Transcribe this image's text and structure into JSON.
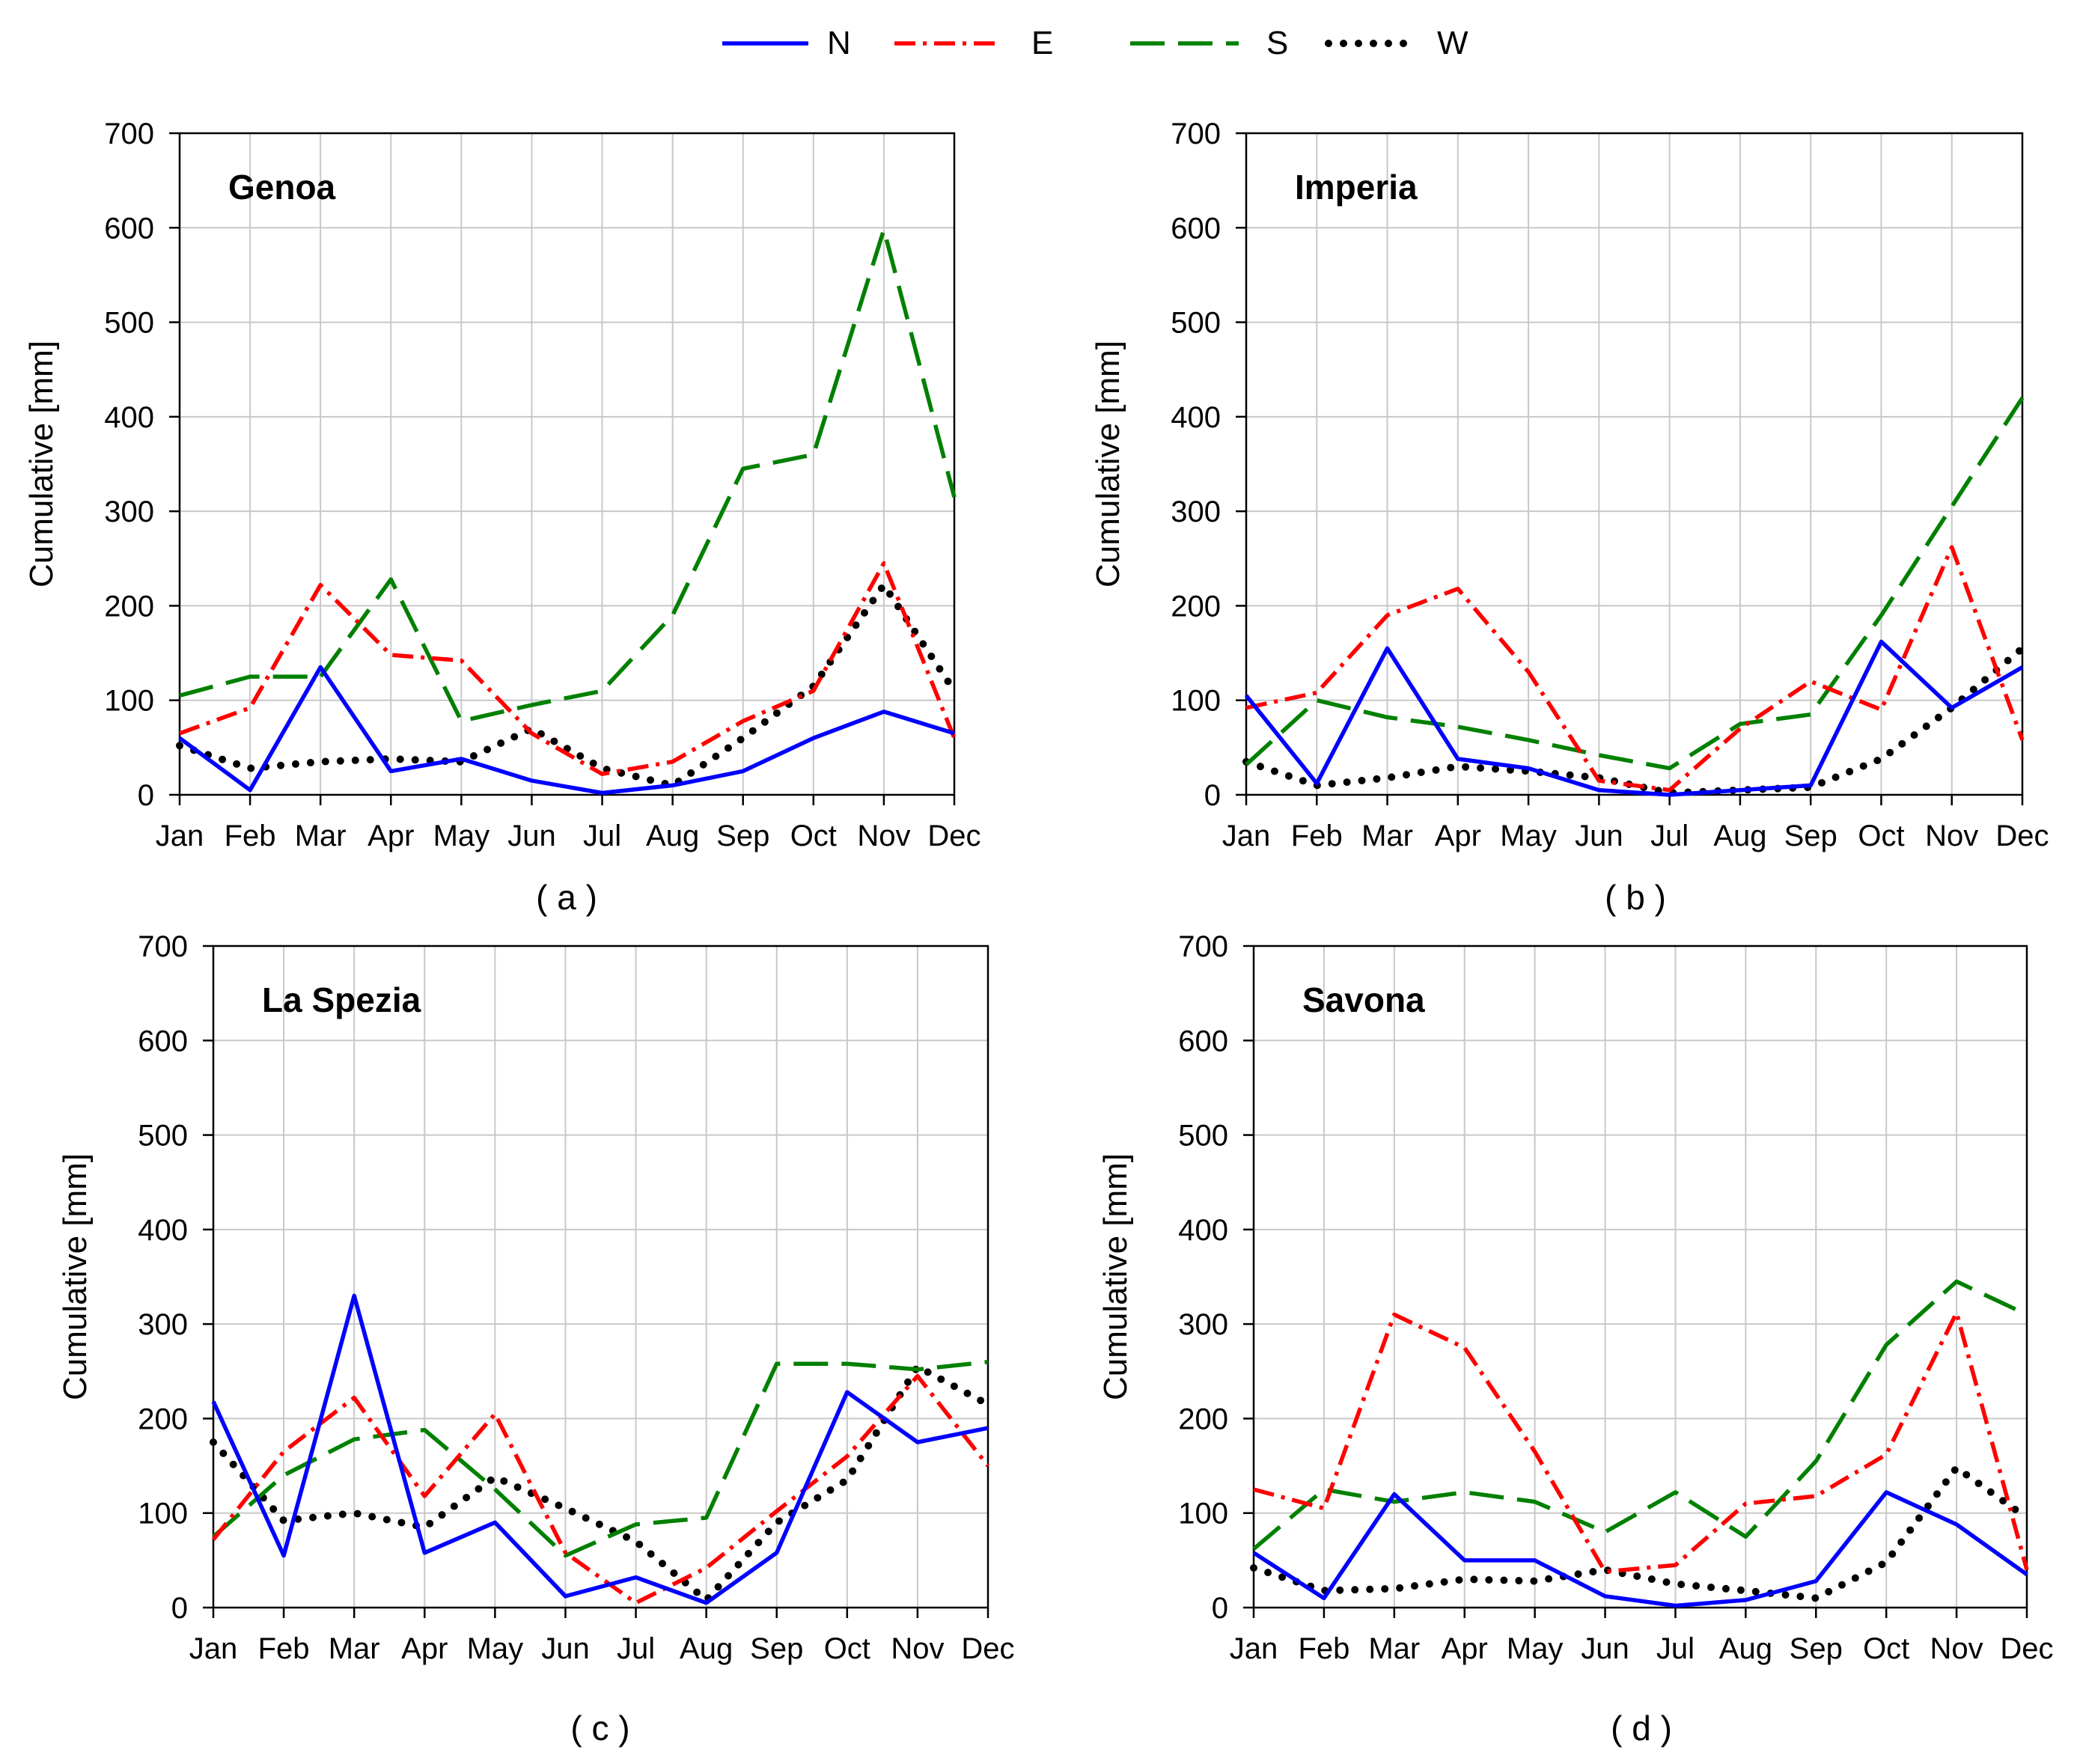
{
  "legend": {
    "position": "top-center",
    "entries": [
      {
        "key": "N",
        "label": "N",
        "color": "#0000FF",
        "dash": "solid"
      },
      {
        "key": "E",
        "label": "E",
        "color": "#FF0000",
        "dash": "dashdot"
      },
      {
        "key": "S",
        "label": "S",
        "color": "#008000",
        "dash": "longdash"
      },
      {
        "key": "W",
        "label": "W",
        "color": "#000000",
        "dash": "dotted"
      }
    ]
  },
  "chart_data": [
    {
      "type": "line",
      "title": "Genoa",
      "caption": "( a )",
      "xlabel": "",
      "ylabel": "Cumulative [mm]",
      "ylim": [
        0,
        700
      ],
      "yticks": [
        0,
        100,
        200,
        300,
        400,
        500,
        600,
        700
      ],
      "grid": true,
      "categories": [
        "Jan",
        "Feb",
        "Mar",
        "Apr",
        "May",
        "Jun",
        "Jul",
        "Aug",
        "Sep",
        "Oct",
        "Nov",
        "Dec"
      ],
      "series": [
        {
          "name": "N",
          "values": [
            60,
            5,
            135,
            25,
            38,
            15,
            2,
            10,
            25,
            60,
            88,
            65
          ]
        },
        {
          "name": "E",
          "values": [
            65,
            92,
            222,
            148,
            142,
            65,
            22,
            35,
            78,
            110,
            245,
            60
          ]
        },
        {
          "name": "S",
          "values": [
            105,
            125,
            125,
            228,
            78,
            95,
            110,
            190,
            345,
            360,
            598,
            315
          ]
        },
        {
          "name": "W",
          "values": [
            52,
            28,
            35,
            38,
            35,
            70,
            28,
            10,
            60,
            115,
            222,
            110
          ]
        }
      ]
    },
    {
      "type": "line",
      "title": "Imperia",
      "caption": "( b )",
      "xlabel": "",
      "ylabel": "Cumulative [mm]",
      "ylim": [
        0,
        700
      ],
      "yticks": [
        0,
        100,
        200,
        300,
        400,
        500,
        600,
        700
      ],
      "grid": true,
      "categories": [
        "Jan",
        "Feb",
        "Mar",
        "Apr",
        "May",
        "Jun",
        "Jul",
        "Aug",
        "Sep",
        "Oct",
        "Nov",
        "Dec"
      ],
      "series": [
        {
          "name": "N",
          "values": [
            105,
            12,
            155,
            38,
            28,
            5,
            0,
            5,
            10,
            162,
            92,
            135
          ]
        },
        {
          "name": "E",
          "values": [
            92,
            108,
            190,
            218,
            130,
            15,
            5,
            70,
            120,
            90,
            262,
            58
          ]
        },
        {
          "name": "S",
          "values": [
            32,
            100,
            82,
            72,
            58,
            42,
            28,
            75,
            85,
            190,
            305,
            420
          ]
        },
        {
          "name": "W",
          "values": [
            35,
            10,
            18,
            30,
            25,
            18,
            2,
            5,
            8,
            38,
            92,
            155
          ]
        }
      ]
    },
    {
      "type": "line",
      "title": "La Spezia",
      "caption": "( c )",
      "xlabel": "",
      "ylabel": "Cumulative [mm]",
      "ylim": [
        0,
        700
      ],
      "yticks": [
        0,
        100,
        200,
        300,
        400,
        500,
        600,
        700
      ],
      "grid": true,
      "categories": [
        "Jan",
        "Feb",
        "Mar",
        "Apr",
        "May",
        "Jun",
        "Jul",
        "Aug",
        "Sep",
        "Oct",
        "Nov",
        "Dec"
      ],
      "series": [
        {
          "name": "N",
          "values": [
            218,
            55,
            330,
            58,
            90,
            12,
            32,
            5,
            58,
            228,
            175,
            190
          ]
        },
        {
          "name": "E",
          "values": [
            72,
            165,
            222,
            118,
            205,
            58,
            5,
            42,
            102,
            160,
            245,
            150
          ]
        },
        {
          "name": "S",
          "values": [
            75,
            140,
            178,
            188,
            125,
            55,
            88,
            95,
            258,
            258,
            252,
            260
          ]
        },
        {
          "name": "W",
          "values": [
            175,
            92,
            100,
            85,
            138,
            105,
            70,
            8,
            90,
            135,
            255,
            215
          ]
        }
      ]
    },
    {
      "type": "line",
      "title": "Savona",
      "caption": "( d )",
      "xlabel": "",
      "ylabel": "Cumulative [mm]",
      "ylim": [
        0,
        700
      ],
      "yticks": [
        0,
        100,
        200,
        300,
        400,
        500,
        600,
        700
      ],
      "grid": true,
      "categories": [
        "Jan",
        "Feb",
        "Mar",
        "Apr",
        "May",
        "Jun",
        "Jul",
        "Aug",
        "Sep",
        "Oct",
        "Nov",
        "Dec"
      ],
      "series": [
        {
          "name": "N",
          "values": [
            58,
            10,
            120,
            50,
            50,
            12,
            2,
            8,
            28,
            122,
            88,
            35
          ]
        },
        {
          "name": "E",
          "values": [
            125,
            105,
            310,
            275,
            165,
            38,
            45,
            110,
            118,
            162,
            312,
            40
          ]
        },
        {
          "name": "S",
          "values": [
            62,
            125,
            112,
            122,
            112,
            80,
            122,
            75,
            155,
            278,
            345,
            310
          ]
        },
        {
          "name": "W",
          "values": [
            42,
            18,
            20,
            30,
            28,
            40,
            25,
            18,
            10,
            48,
            148,
            95
          ]
        }
      ]
    }
  ]
}
